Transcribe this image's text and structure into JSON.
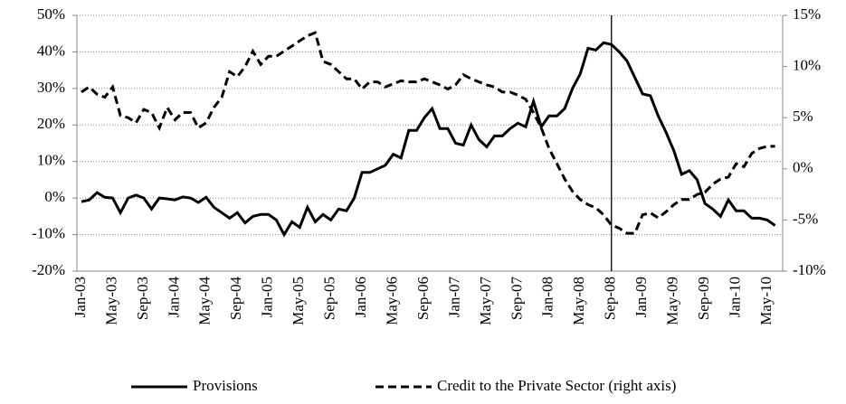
{
  "chart_data": {
    "type": "line",
    "categories": [
      "Jan-03",
      null,
      null,
      null,
      "May-03",
      null,
      null,
      null,
      "Sep-03",
      null,
      null,
      null,
      "Jan-04",
      null,
      null,
      null,
      "May-04",
      null,
      null,
      null,
      "Sep-04",
      null,
      null,
      null,
      "Jan-05",
      null,
      null,
      null,
      "May-05",
      null,
      null,
      null,
      "Sep-05",
      null,
      null,
      null,
      "Jan-06",
      null,
      null,
      null,
      "May-06",
      null,
      null,
      null,
      "Sep-06",
      null,
      null,
      null,
      "Jan-07",
      null,
      null,
      null,
      "May-07",
      null,
      null,
      null,
      "Sep-07",
      null,
      null,
      null,
      "Jan-08",
      null,
      null,
      null,
      "May-08",
      null,
      null,
      null,
      "Sep-08",
      null,
      null,
      null,
      "Jan-09",
      null,
      null,
      null,
      "May-09",
      null,
      null,
      null,
      "Sep-09",
      null,
      null,
      null,
      "Jan-10",
      null,
      null,
      null,
      "May-10",
      null
    ],
    "series": [
      {
        "name": "Provisions",
        "color": "#000000",
        "dash": "solid",
        "values": [
          -1,
          -0.5,
          1.5,
          0.2,
          0,
          -4,
          0,
          0.8,
          0,
          -3,
          0,
          -0.2,
          -0.5,
          0.3,
          0,
          -1.2,
          0.2,
          -2.5,
          -4,
          -5.5,
          -4,
          -6.8,
          -5,
          -4.5,
          -4.5,
          -6,
          -10,
          -6.5,
          -8,
          -2.5,
          -6.5,
          -4.5,
          -6,
          -3,
          -3.5,
          0,
          7,
          7,
          8,
          9,
          12,
          11,
          18.5,
          18.5,
          22,
          24.5,
          19,
          19,
          15,
          14.5,
          20,
          16,
          14,
          17,
          17,
          19,
          20.5,
          19.5,
          26.5,
          19.5,
          22.5,
          22.5,
          24.5,
          30,
          34,
          41,
          40.5,
          42.5,
          42,
          40,
          37.5,
          33,
          28.5,
          28,
          22.5,
          18,
          13,
          6.5,
          7.5,
          5,
          -1.5,
          -3,
          -5,
          -0.5,
          -3.5,
          -3.5,
          -5.5,
          -5.5,
          -6,
          -7.5
        ]
      },
      {
        "name": "Credit to the Private Sector (right axis)",
        "color": "#000000",
        "dash": "dashed",
        "axis": "y2",
        "values": [
          7.5,
          8,
          7.3,
          7,
          8,
          5.2,
          5,
          4.5,
          5.8,
          5.5,
          4,
          6,
          4.8,
          5.5,
          5.5,
          4,
          4.5,
          6,
          7,
          9.5,
          9,
          10,
          11.5,
          10.2,
          11,
          11,
          11.5,
          12,
          12.5,
          13,
          13.3,
          10.5,
          10.2,
          9.5,
          8.8,
          8.8,
          7.8,
          8.5,
          8.5,
          8,
          8.3,
          8.6,
          8.5,
          8.5,
          8.8,
          8.5,
          8.2,
          7.8,
          8.2,
          9.2,
          8.8,
          8.5,
          8.2,
          8,
          7.5,
          7.5,
          7.2,
          6.8,
          5.5,
          4,
          2,
          0.5,
          -1,
          -2.2,
          -3,
          -3.5,
          -3.8,
          -4.5,
          -5.5,
          -5.8,
          -6.3,
          -6.3,
          -4.5,
          -4.3,
          -4.8,
          -4.2,
          -3.5,
          -3,
          -3,
          -2.5,
          -2.3,
          -1.5,
          -1,
          -0.8,
          0.5,
          0.2,
          1.5,
          2,
          2.2,
          2.2
        ]
      }
    ],
    "ylim": [
      -20,
      50
    ],
    "yticks": [
      {
        "value": -20,
        "label": "-20%"
      },
      {
        "value": -10,
        "label": "-10%"
      },
      {
        "value": 0,
        "label": "0%"
      },
      {
        "value": 10,
        "label": "10%"
      },
      {
        "value": 20,
        "label": "20%"
      },
      {
        "value": 30,
        "label": "30%"
      },
      {
        "value": 40,
        "label": "40%"
      },
      {
        "value": 50,
        "label": "50%"
      }
    ],
    "y2lim": [
      -10,
      15
    ],
    "y2ticks": [
      {
        "value": -10,
        "label": "-10%"
      },
      {
        "value": -5,
        "label": "-5%"
      },
      {
        "value": 0,
        "label": "0%"
      },
      {
        "value": 5,
        "label": "5%"
      },
      {
        "value": 10,
        "label": "10%"
      },
      {
        "value": 15,
        "label": "15%"
      }
    ],
    "grid": true,
    "vline_index": 68,
    "legend": "bottom"
  }
}
